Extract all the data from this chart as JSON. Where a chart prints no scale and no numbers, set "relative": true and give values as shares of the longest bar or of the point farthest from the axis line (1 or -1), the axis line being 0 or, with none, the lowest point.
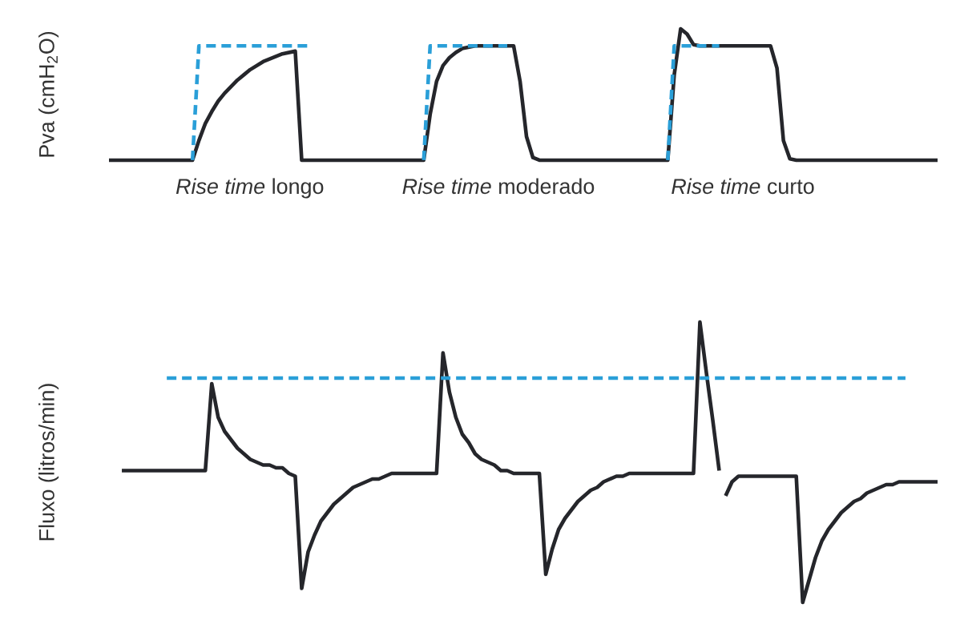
{
  "chart_data": [
    {
      "type": "line",
      "relative": true,
      "ylabel": "Pva (cmH$_{2}$O)",
      "annotations": [
        "*Rise time* longo",
        "*Rise time* moderado",
        "*Rise time* curto"
      ],
      "categories": [
        null,
        null,
        null,
        null,
        null,
        null,
        null,
        null,
        null,
        null,
        null,
        null,
        null,
        null,
        null,
        null,
        null,
        null,
        null,
        null,
        null,
        null,
        null,
        null,
        null,
        null,
        null,
        null,
        null,
        null,
        null,
        null,
        null,
        null,
        null,
        null,
        null,
        null,
        null,
        null,
        null,
        null,
        null,
        null,
        null,
        null,
        null,
        null,
        null,
        null,
        null,
        null,
        null,
        null,
        null,
        null,
        null,
        null,
        null,
        null,
        null,
        null,
        null,
        null,
        null,
        null,
        null,
        null,
        null,
        null,
        null,
        null,
        null,
        null,
        null,
        null,
        null,
        null,
        null,
        null,
        null,
        null,
        null,
        null,
        null,
        null,
        null,
        null,
        null,
        null,
        null,
        null,
        null,
        null,
        null,
        null,
        null,
        null,
        null,
        null,
        null,
        null,
        null,
        null,
        null,
        null,
        null,
        null,
        null,
        null,
        null,
        null,
        null,
        null,
        null,
        null,
        null,
        null,
        null,
        null,
        null,
        null,
        null,
        null,
        null,
        null,
        null,
        null,
        null,
        null
      ],
      "series": [
        {
          "color": "#25262b",
          "line_style": "solid",
          "values": [
            0,
            0,
            0,
            0,
            0,
            0,
            0,
            0,
            0,
            0,
            0,
            0,
            0,
            0,
            0.15,
            0.28,
            0.37,
            0.45,
            0.51,
            0.56,
            0.61,
            0.65,
            0.69,
            0.72,
            0.75,
            0.77,
            0.79,
            0.81,
            0.82,
            0.83,
            0,
            0,
            0,
            0,
            0,
            0,
            0,
            0,
            0,
            0,
            0,
            0,
            0,
            0,
            0,
            0,
            0,
            0,
            0,
            0,
            0.35,
            0.6,
            0.72,
            0.78,
            0.82,
            0.85,
            0.86,
            0.87,
            0.87,
            0.87,
            0.87,
            0.87,
            0.87,
            0.87,
            0.6,
            0.18,
            0.02,
            0,
            0,
            0,
            0,
            0,
            0,
            0,
            0,
            0,
            0,
            0,
            0,
            0,
            0,
            0,
            0,
            0,
            0,
            0,
            0,
            0,
            0.65,
            1,
            0.96,
            0.88,
            0.87,
            0.87,
            0.87,
            0.87,
            0.87,
            0.87,
            0.87,
            0.87,
            0.87,
            0.87,
            0.87,
            0.87,
            0.7,
            0.15,
            0.01,
            0,
            0,
            0,
            0,
            0,
            0,
            0,
            0,
            0,
            0,
            0,
            0,
            0,
            0,
            0,
            0,
            0,
            0,
            0,
            0,
            0,
            0,
            0
          ]
        },
        {
          "color": "#2a9fd8",
          "line_style": "dashed",
          "values": [
            null,
            null,
            null,
            null,
            null,
            null,
            null,
            null,
            null,
            null,
            null,
            null,
            null,
            0,
            0.87,
            0.87,
            0.87,
            0.87,
            0.87,
            0.87,
            0.87,
            0.87,
            0.87,
            0.87,
            0.87,
            0.87,
            0.87,
            0.87,
            0.87,
            0.87,
            0.87,
            0.87,
            null,
            null,
            null,
            null,
            null,
            null,
            null,
            null,
            null,
            null,
            null,
            null,
            null,
            null,
            null,
            null,
            null,
            null,
            null,
            null,
            null,
            null,
            null,
            null,
            null,
            null,
            null,
            null,
            null,
            null,
            null,
            null,
            null,
            null,
            null,
            null,
            null,
            null,
            null,
            null,
            null,
            null,
            null,
            null,
            null,
            null,
            null,
            null,
            null,
            null,
            null,
            null,
            null,
            null,
            null,
            null,
            null,
            null,
            null,
            null,
            null,
            null,
            null,
            null,
            null,
            null,
            null,
            null,
            null,
            null,
            null,
            null,
            null,
            null,
            null,
            null,
            null,
            null,
            null,
            null,
            null,
            null,
            null,
            null,
            null,
            null,
            null,
            null,
            null,
            null,
            null,
            null,
            null,
            null,
            null,
            null,
            null,
            null
          ]
        },
        {
          "color": "#2a9fd8",
          "line_style": "dashed",
          "values": [
            null,
            null,
            null,
            null,
            null,
            null,
            null,
            null,
            null,
            null,
            null,
            null,
            null,
            null,
            null,
            null,
            null,
            null,
            null,
            null,
            null,
            null,
            null,
            null,
            null,
            null,
            null,
            null,
            null,
            null,
            null,
            null,
            null,
            null,
            null,
            null,
            null,
            null,
            null,
            null,
            null,
            null,
            null,
            null,
            null,
            null,
            null,
            null,
            null,
            0,
            0.87,
            0.87,
            0.87,
            0.87,
            0.87,
            0.87,
            0.87,
            0.87,
            0.87,
            0.87,
            0.87,
            0.87,
            0.87,
            null,
            null,
            null,
            null,
            null,
            null,
            null,
            null,
            null,
            null,
            null,
            null,
            null,
            null,
            null,
            null,
            null,
            null,
            null,
            null,
            null,
            null,
            null,
            null,
            null,
            null,
            null,
            null,
            null,
            null,
            null,
            null,
            null,
            null,
            null,
            null,
            null,
            null,
            null,
            null,
            null,
            null,
            null,
            null,
            null,
            null,
            null,
            null,
            null,
            null,
            null,
            null,
            null,
            null,
            null,
            null,
            null,
            null,
            null,
            null,
            null,
            null,
            null,
            null,
            null,
            null,
            null
          ]
        },
        {
          "color": "#2a9fd8",
          "line_style": "dashed",
          "values": [
            null,
            null,
            null,
            null,
            null,
            null,
            null,
            null,
            null,
            null,
            null,
            null,
            null,
            null,
            null,
            null,
            null,
            null,
            null,
            null,
            null,
            null,
            null,
            null,
            null,
            null,
            null,
            null,
            null,
            null,
            null,
            null,
            null,
            null,
            null,
            null,
            null,
            null,
            null,
            null,
            null,
            null,
            null,
            null,
            null,
            null,
            null,
            null,
            null,
            null,
            null,
            null,
            null,
            null,
            null,
            null,
            null,
            null,
            null,
            null,
            null,
            null,
            null,
            null,
            null,
            null,
            null,
            null,
            null,
            null,
            null,
            null,
            null,
            null,
            null,
            null,
            null,
            null,
            null,
            null,
            null,
            null,
            null,
            null,
            null,
            null,
            null,
            0,
            0.87,
            0.87,
            0.87,
            0.87,
            0.87,
            0.87,
            0.87,
            0.87,
            null,
            null,
            null,
            null,
            null,
            null,
            null,
            null,
            null,
            null,
            null,
            null,
            null,
            null,
            null,
            null,
            null,
            null,
            null,
            null,
            null,
            null,
            null,
            null,
            null,
            null,
            null,
            null,
            null,
            null,
            null,
            null,
            null,
            null
          ]
        }
      ]
    },
    {
      "type": "line",
      "relative": true,
      "ylabel": "Fluxo (litros/min)",
      "categories": [
        null,
        null,
        null,
        null,
        null,
        null,
        null,
        null,
        null,
        null,
        null,
        null,
        null,
        null,
        null,
        null,
        null,
        null,
        null,
        null,
        null,
        null,
        null,
        null,
        null,
        null,
        null,
        null,
        null,
        null,
        null,
        null,
        null,
        null,
        null,
        null,
        null,
        null,
        null,
        null,
        null,
        null,
        null,
        null,
        null,
        null,
        null,
        null,
        null,
        null,
        null,
        null,
        null,
        null,
        null,
        null,
        null,
        null,
        null,
        null,
        null,
        null,
        null,
        null,
        null,
        null,
        null,
        null,
        null,
        null,
        null,
        null,
        null,
        null,
        null,
        null,
        null,
        null,
        null,
        null,
        null,
        null,
        null,
        null,
        null,
        null,
        null,
        null,
        null,
        null,
        null,
        null,
        null,
        null,
        null,
        null,
        null,
        null,
        null,
        null,
        null,
        null,
        null,
        null,
        null,
        null,
        null,
        null,
        null,
        null,
        null,
        null,
        null,
        null,
        null,
        null,
        null,
        null,
        null,
        null,
        null,
        null,
        null,
        null,
        null,
        null,
        null,
        null,
        null,
        null
      ],
      "series": [
        {
          "color": "#25262b",
          "line_style": "solid",
          "values": [
            null,
            null,
            0.47,
            0.47,
            0.47,
            0.47,
            0.47,
            0.47,
            0.47,
            0.47,
            0.47,
            0.47,
            0.47,
            0.47,
            0.47,
            0.47,
            0.78,
            0.66,
            0.61,
            0.58,
            0.55,
            0.53,
            0.51,
            0.5,
            0.49,
            0.49,
            0.48,
            0.48,
            0.46,
            0.45,
            0.05,
            0.18,
            0.24,
            0.29,
            0.32,
            0.35,
            0.37,
            0.39,
            0.41,
            0.42,
            0.43,
            0.44,
            0.44,
            0.45,
            0.46,
            0.46,
            0.46,
            0.46,
            0.46,
            0.46,
            0.46,
            0.46,
            0.89,
            0.75,
            0.66,
            0.6,
            0.57,
            0.53,
            0.51,
            0.5,
            0.49,
            0.47,
            0.47,
            0.46,
            0.46,
            0.46,
            0.46,
            0.46,
            0.1,
            0.19,
            0.26,
            0.3,
            0.33,
            0.36,
            0.38,
            0.4,
            0.41,
            0.43,
            0.44,
            0.45,
            0.45,
            0.46,
            0.46,
            0.46,
            0.46,
            0.46,
            0.46,
            0.46,
            0.46,
            0.46,
            0.46,
            0.46,
            1,
            0.82,
            0.65,
            0.47,
            null,
            null,
            null,
            null,
            null,
            null,
            null,
            null,
            null,
            null,
            null,
            null,
            null,
            null,
            null,
            null,
            null,
            null,
            null,
            null,
            null,
            null,
            null,
            null,
            null,
            null,
            null,
            null,
            null,
            null,
            null,
            null,
            null,
            null
          ]
        },
        {
          "color": "#25262b",
          "line_style": "solid",
          "values": [
            null,
            null,
            null,
            null,
            null,
            null,
            null,
            null,
            null,
            null,
            null,
            null,
            null,
            null,
            null,
            null,
            null,
            null,
            null,
            null,
            null,
            null,
            null,
            null,
            null,
            null,
            null,
            null,
            null,
            null,
            null,
            null,
            null,
            null,
            null,
            null,
            null,
            null,
            null,
            null,
            null,
            null,
            null,
            null,
            null,
            null,
            null,
            null,
            null,
            null,
            null,
            null,
            null,
            null,
            null,
            null,
            null,
            null,
            null,
            null,
            null,
            null,
            null,
            null,
            null,
            null,
            null,
            null,
            null,
            null,
            null,
            null,
            null,
            null,
            null,
            null,
            null,
            null,
            null,
            null,
            null,
            null,
            null,
            null,
            null,
            null,
            null,
            null,
            null,
            null,
            null,
            null,
            null,
            null,
            null,
            null,
            0.38,
            0.43,
            0.45,
            0.45,
            0.45,
            0.45,
            0.45,
            0.45,
            0.45,
            0.45,
            0.45,
            0.45,
            0,
            0.08,
            0.16,
            0.22,
            0.26,
            0.29,
            0.32,
            0.34,
            0.36,
            0.37,
            0.39,
            0.4,
            0.41,
            0.42,
            0.42,
            0.43,
            0.43,
            0.43,
            0.43,
            0.43,
            0.43,
            0.43
          ]
        },
        {
          "color": "#2a9fd8",
          "line_style": "dashed",
          "values": [
            null,
            null,
            null,
            null,
            null,
            null,
            null,
            null,
            null,
            0.8,
            0.8,
            0.8,
            0.8,
            0.8,
            0.8,
            0.8,
            0.8,
            0.8,
            0.8,
            0.8,
            0.8,
            0.8,
            0.8,
            0.8,
            0.8,
            0.8,
            0.8,
            0.8,
            0.8,
            0.8,
            0.8,
            0.8,
            0.8,
            0.8,
            0.8,
            0.8,
            0.8,
            0.8,
            0.8,
            0.8,
            0.8,
            0.8,
            0.8,
            0.8,
            0.8,
            0.8,
            0.8,
            0.8,
            0.8,
            0.8,
            0.8,
            0.8,
            0.8,
            0.8,
            0.8,
            0.8,
            0.8,
            0.8,
            0.8,
            0.8,
            0.8,
            0.8,
            0.8,
            0.8,
            0.8,
            0.8,
            0.8,
            0.8,
            0.8,
            0.8,
            0.8,
            0.8,
            0.8,
            0.8,
            0.8,
            0.8,
            0.8,
            0.8,
            0.8,
            0.8,
            0.8,
            0.8,
            0.8,
            0.8,
            0.8,
            0.8,
            0.8,
            0.8,
            0.8,
            0.8,
            0.8,
            0.8,
            0.8,
            0.8,
            0.8,
            0.8,
            0.8,
            0.8,
            0.8,
            0.8,
            0.8,
            0.8,
            0.8,
            0.8,
            0.8,
            0.8,
            0.8,
            0.8,
            0.8,
            0.8,
            0.8,
            0.8,
            0.8,
            0.8,
            0.8,
            0.8,
            0.8,
            0.8,
            0.8,
            0.8,
            0.8,
            0.8,
            0.8,
            0.8,
            0.8,
            null,
            null,
            null,
            null,
            null
          ]
        }
      ]
    }
  ]
}
